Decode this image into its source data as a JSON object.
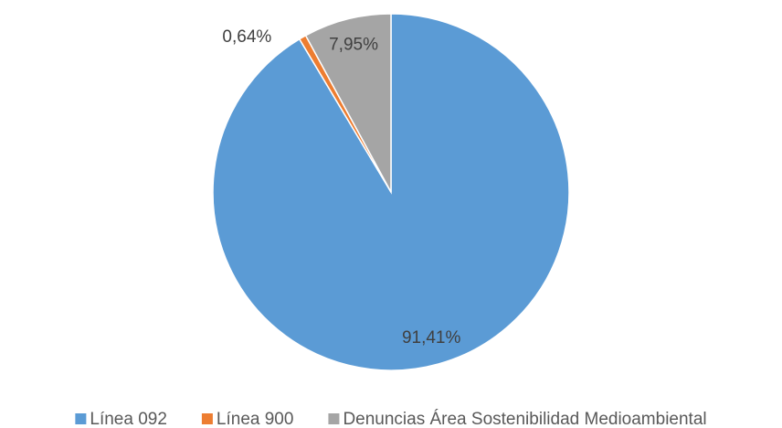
{
  "chart_data": {
    "type": "pie",
    "categories": [
      "Línea 092",
      "Línea 900",
      "Denuncias Área Sostenibilidad Medioambiental"
    ],
    "values": [
      91.41,
      0.64,
      7.95
    ],
    "value_labels": [
      "91,41%",
      "0,64%",
      "7,95%"
    ],
    "colors": [
      "#5b9bd5",
      "#ed7d31",
      "#a5a5a5"
    ],
    "legend": "bottom"
  }
}
